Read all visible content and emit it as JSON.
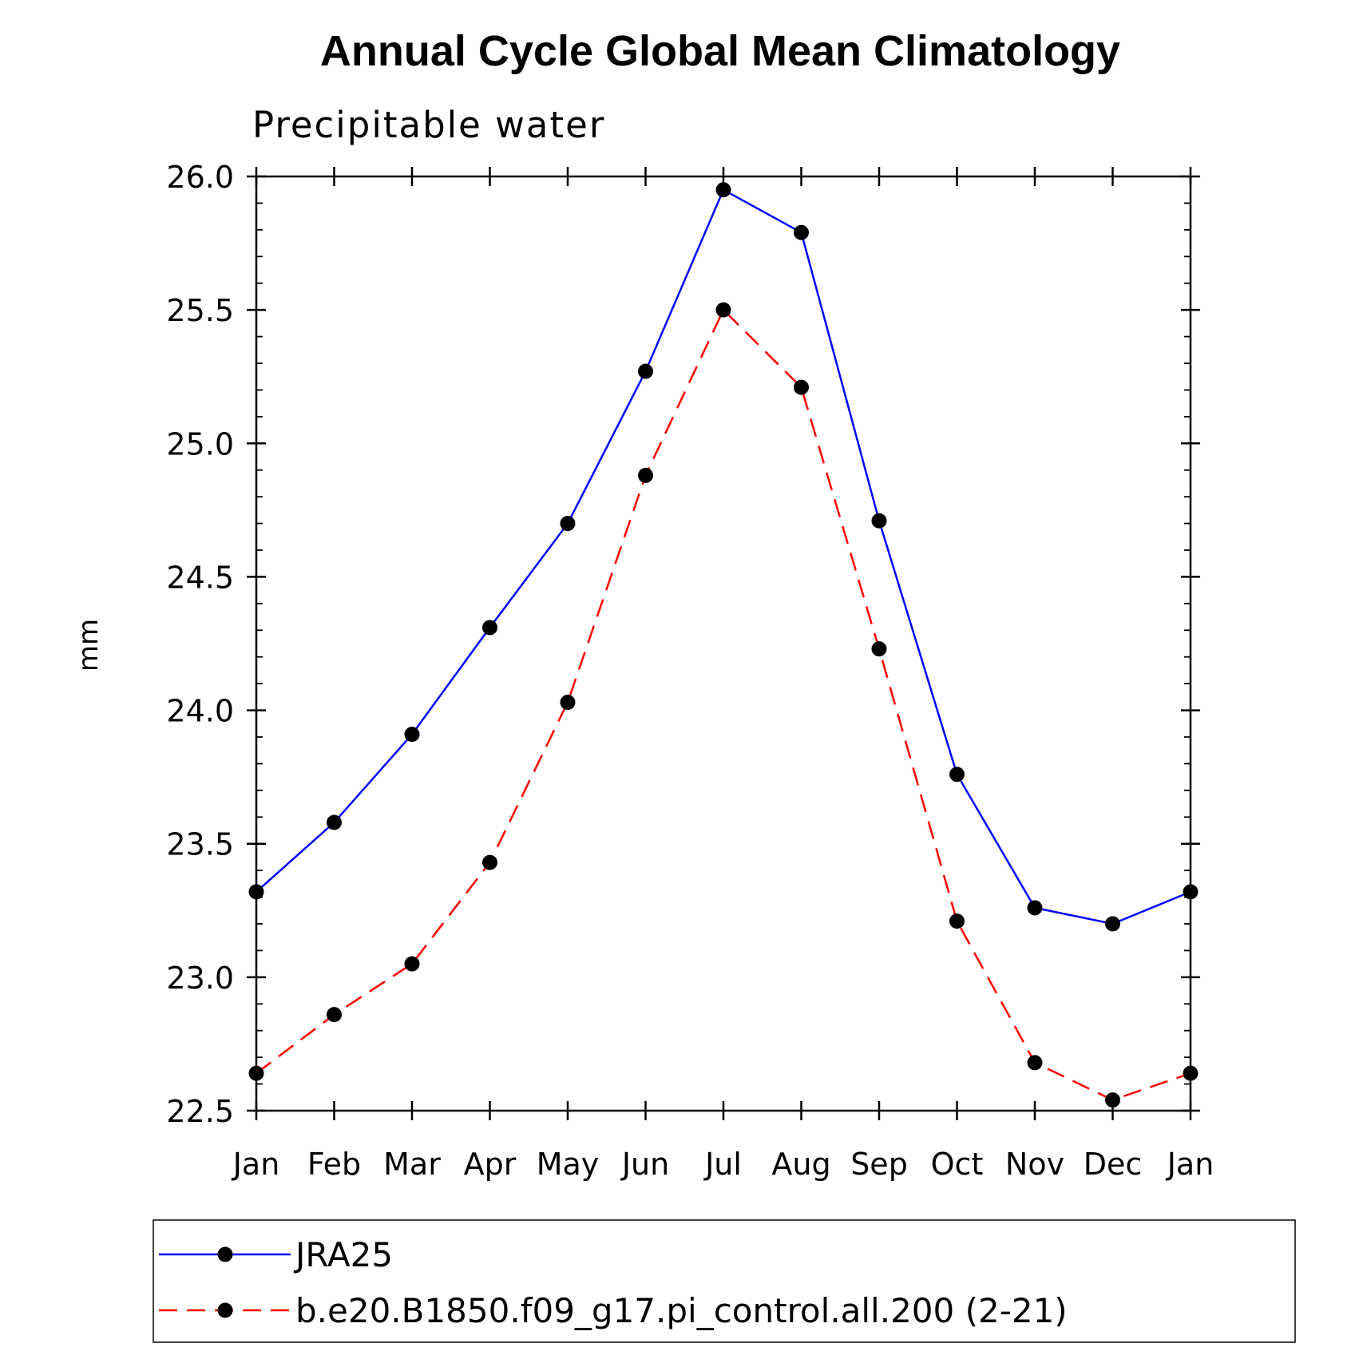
{
  "chart_data": {
    "type": "line",
    "title": "Annual Cycle Global Mean Climatology",
    "subtitle": "Precipitable water",
    "xlabel": "",
    "ylabel": "mm",
    "categories": [
      "Jan",
      "Feb",
      "Mar",
      "Apr",
      "May",
      "Jun",
      "Jul",
      "Aug",
      "Sep",
      "Oct",
      "Nov",
      "Dec",
      "Jan"
    ],
    "ylim": [
      22.5,
      26.0
    ],
    "yticks": [
      "22.5",
      "23.0",
      "23.5",
      "24.0",
      "24.5",
      "25.0",
      "25.5",
      "26.0"
    ],
    "grid": false,
    "legend_position": "bottom",
    "series": [
      {
        "name": "JRA25",
        "color": "#0000ff",
        "style": "solid",
        "marker": "filled-circle",
        "values": [
          23.32,
          23.58,
          23.91,
          24.31,
          24.7,
          25.27,
          25.95,
          25.79,
          24.71,
          23.76,
          23.26,
          23.2,
          23.32
        ]
      },
      {
        "name": "b.e20.B1850.f09_g17.pi_control.all.200 (2-21)",
        "color": "#ff0000",
        "style": "dashed",
        "marker": "filled-circle",
        "values": [
          22.64,
          22.86,
          23.05,
          23.43,
          24.03,
          24.88,
          25.5,
          25.21,
          24.23,
          23.21,
          22.68,
          22.54,
          22.64
        ]
      }
    ]
  }
}
